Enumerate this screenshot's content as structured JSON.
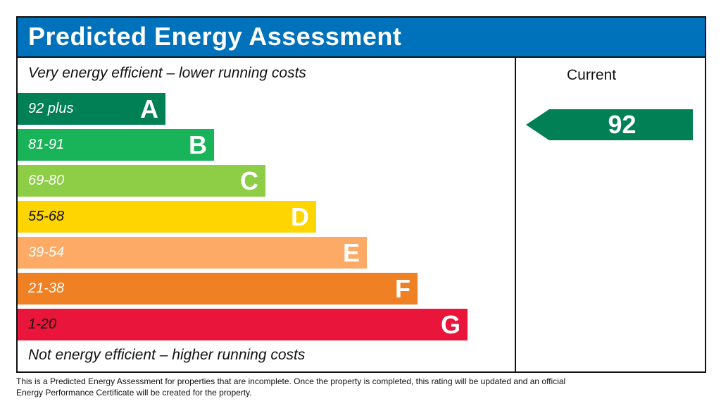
{
  "chart_data": {
    "type": "bar",
    "title": "Predicted Energy Assessment",
    "top_note": "Very energy efficient – lower running costs",
    "bottom_note": "Not energy efficient – higher running costs",
    "bands": [
      {
        "range": "92 plus",
        "letter": "A",
        "color": "#008054"
      },
      {
        "range": "81-91",
        "letter": "B",
        "color": "#19b459"
      },
      {
        "range": "69-80",
        "letter": "C",
        "color": "#8dce46"
      },
      {
        "range": "55-68",
        "letter": "D",
        "color": "#ffd500"
      },
      {
        "range": "39-54",
        "letter": "E",
        "color": "#fcaa65"
      },
      {
        "range": "21-38",
        "letter": "F",
        "color": "#ef8023"
      },
      {
        "range": "1-20",
        "letter": "G",
        "color": "#e9153b"
      }
    ],
    "current": {
      "label": "Current",
      "value": 92,
      "band": "A",
      "color": "#008054"
    }
  },
  "footer": "This is a Predicted Energy Assessment for properties that are incomplete. Once the property is completed, this rating will be updated and an official Energy Performance Certificate will be created for the property."
}
